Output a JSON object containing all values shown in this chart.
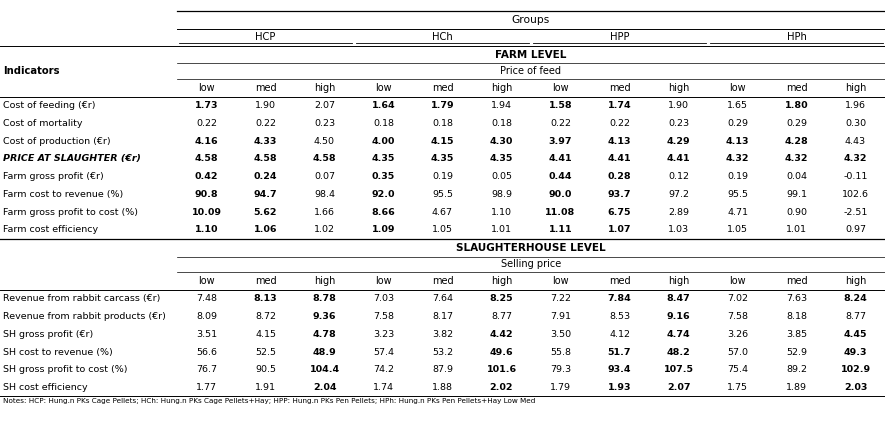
{
  "title": "Groups",
  "groups": [
    "HCP",
    "HCh",
    "HPP",
    "HPh"
  ],
  "farm_level_label": "FARM LEVEL",
  "slaughter_level_label": "SLAUGHTERHOUSE LEVEL",
  "price_of_feed_label": "Price of feed",
  "selling_price_label": "Selling price",
  "col_header": [
    "low",
    "med",
    "high",
    "low",
    "med",
    "high",
    "low",
    "med",
    "high",
    "low",
    "med",
    "high"
  ],
  "indicators_label": "Indicators",
  "farm_rows": [
    {
      "label": "Cost of feeding (€r)",
      "values": [
        "1.73",
        "1.90",
        "2.07",
        "1.64",
        "1.79",
        "1.94",
        "1.58",
        "1.74",
        "1.90",
        "1.65",
        "1.80",
        "1.96"
      ],
      "bold": [
        true,
        false,
        false,
        true,
        true,
        false,
        true,
        true,
        false,
        false,
        true,
        false
      ]
    },
    {
      "label": "Cost of mortality",
      "values": [
        "0.22",
        "0.22",
        "0.23",
        "0.18",
        "0.18",
        "0.18",
        "0.22",
        "0.22",
        "0.23",
        "0.29",
        "0.29",
        "0.30"
      ],
      "bold": [
        false,
        false,
        false,
        false,
        false,
        false,
        false,
        false,
        false,
        false,
        false,
        false
      ]
    },
    {
      "label": "Cost of production (€r)",
      "values": [
        "4.16",
        "4.33",
        "4.50",
        "4.00",
        "4.15",
        "4.30",
        "3.97",
        "4.13",
        "4.29",
        "4.13",
        "4.28",
        "4.43"
      ],
      "bold": [
        true,
        true,
        false,
        true,
        true,
        true,
        true,
        true,
        true,
        true,
        true,
        false
      ]
    },
    {
      "label": "PRICE AT SLAUGHTER (€r)",
      "values": [
        "4.58",
        "4.58",
        "4.58",
        "4.35",
        "4.35",
        "4.35",
        "4.41",
        "4.41",
        "4.41",
        "4.32",
        "4.32",
        "4.32"
      ],
      "bold": [
        true,
        true,
        true,
        true,
        true,
        true,
        true,
        true,
        true,
        true,
        true,
        true
      ],
      "italic": true
    },
    {
      "label": "Farm gross profit (€r)",
      "values": [
        "0.42",
        "0.24",
        "0.07",
        "0.35",
        "0.19",
        "0.05",
        "0.44",
        "0.28",
        "0.12",
        "0.19",
        "0.04",
        "-0.11"
      ],
      "bold": [
        true,
        true,
        false,
        true,
        false,
        false,
        true,
        true,
        false,
        false,
        false,
        false
      ]
    },
    {
      "label": "Farm cost to revenue (%)",
      "values": [
        "90.8",
        "94.7",
        "98.4",
        "92.0",
        "95.5",
        "98.9",
        "90.0",
        "93.7",
        "97.2",
        "95.5",
        "99.1",
        "102.6"
      ],
      "bold": [
        true,
        true,
        false,
        true,
        false,
        false,
        true,
        true,
        false,
        false,
        false,
        false
      ]
    },
    {
      "label": "Farm gross profit to cost (%)",
      "values": [
        "10.09",
        "5.62",
        "1.66",
        "8.66",
        "4.67",
        "1.10",
        "11.08",
        "6.75",
        "2.89",
        "4.71",
        "0.90",
        "-2.51"
      ],
      "bold": [
        true,
        true,
        false,
        true,
        false,
        false,
        true,
        true,
        false,
        false,
        false,
        false
      ]
    },
    {
      "label": "Farm cost efficiency",
      "values": [
        "1.10",
        "1.06",
        "1.02",
        "1.09",
        "1.05",
        "1.01",
        "1.11",
        "1.07",
        "1.03",
        "1.05",
        "1.01",
        "0.97"
      ],
      "bold": [
        true,
        true,
        false,
        true,
        false,
        false,
        true,
        true,
        false,
        false,
        false,
        false
      ]
    }
  ],
  "slaughter_rows": [
    {
      "label": "Revenue from rabbit carcass (€r)",
      "values": [
        "7.48",
        "8.13",
        "8.78",
        "7.03",
        "7.64",
        "8.25",
        "7.22",
        "7.84",
        "8.47",
        "7.02",
        "7.63",
        "8.24"
      ],
      "bold": [
        false,
        true,
        true,
        false,
        false,
        true,
        false,
        true,
        true,
        false,
        false,
        true
      ]
    },
    {
      "label": "Revenue from rabbit products (€r)",
      "values": [
        "8.09",
        "8.72",
        "9.36",
        "7.58",
        "8.17",
        "8.77",
        "7.91",
        "8.53",
        "9.16",
        "7.58",
        "8.18",
        "8.77"
      ],
      "bold": [
        false,
        false,
        true,
        false,
        false,
        false,
        false,
        false,
        true,
        false,
        false,
        false
      ]
    },
    {
      "label": "SH gross profit (€r)",
      "values": [
        "3.51",
        "4.15",
        "4.78",
        "3.23",
        "3.82",
        "4.42",
        "3.50",
        "4.12",
        "4.74",
        "3.26",
        "3.85",
        "4.45"
      ],
      "bold": [
        false,
        false,
        true,
        false,
        false,
        true,
        false,
        false,
        true,
        false,
        false,
        true
      ]
    },
    {
      "label": "SH cost to revenue (%)",
      "values": [
        "56.6",
        "52.5",
        "48.9",
        "57.4",
        "53.2",
        "49.6",
        "55.8",
        "51.7",
        "48.2",
        "57.0",
        "52.9",
        "49.3"
      ],
      "bold": [
        false,
        false,
        true,
        false,
        false,
        true,
        false,
        true,
        true,
        false,
        false,
        true
      ]
    },
    {
      "label": "SH gross profit to cost (%)",
      "values": [
        "76.7",
        "90.5",
        "104.4",
        "74.2",
        "87.9",
        "101.6",
        "79.3",
        "93.4",
        "107.5",
        "75.4",
        "89.2",
        "102.9"
      ],
      "bold": [
        false,
        false,
        true,
        false,
        false,
        true,
        false,
        true,
        true,
        false,
        false,
        true
      ]
    },
    {
      "label": "SH cost efficiency",
      "values": [
        "1.77",
        "1.91",
        "2.04",
        "1.74",
        "1.88",
        "2.02",
        "1.79",
        "1.93",
        "2.07",
        "1.75",
        "1.89",
        "2.03"
      ],
      "bold": [
        false,
        false,
        true,
        false,
        false,
        true,
        false,
        true,
        true,
        false,
        false,
        true
      ]
    }
  ],
  "notes": "Notes: HCP: Hung.n PKs Cage Pellets; HCh: Hung.n PKs Cage Pellets+Hay; HPP: Hung.n PKs Pen Pellets; HPh: Hung.n PKs Pen Pellets+Hay Low Med",
  "bg_color": "#ffffff",
  "text_color": "#000000",
  "font_size": 6.8,
  "header_font_size": 7.2
}
